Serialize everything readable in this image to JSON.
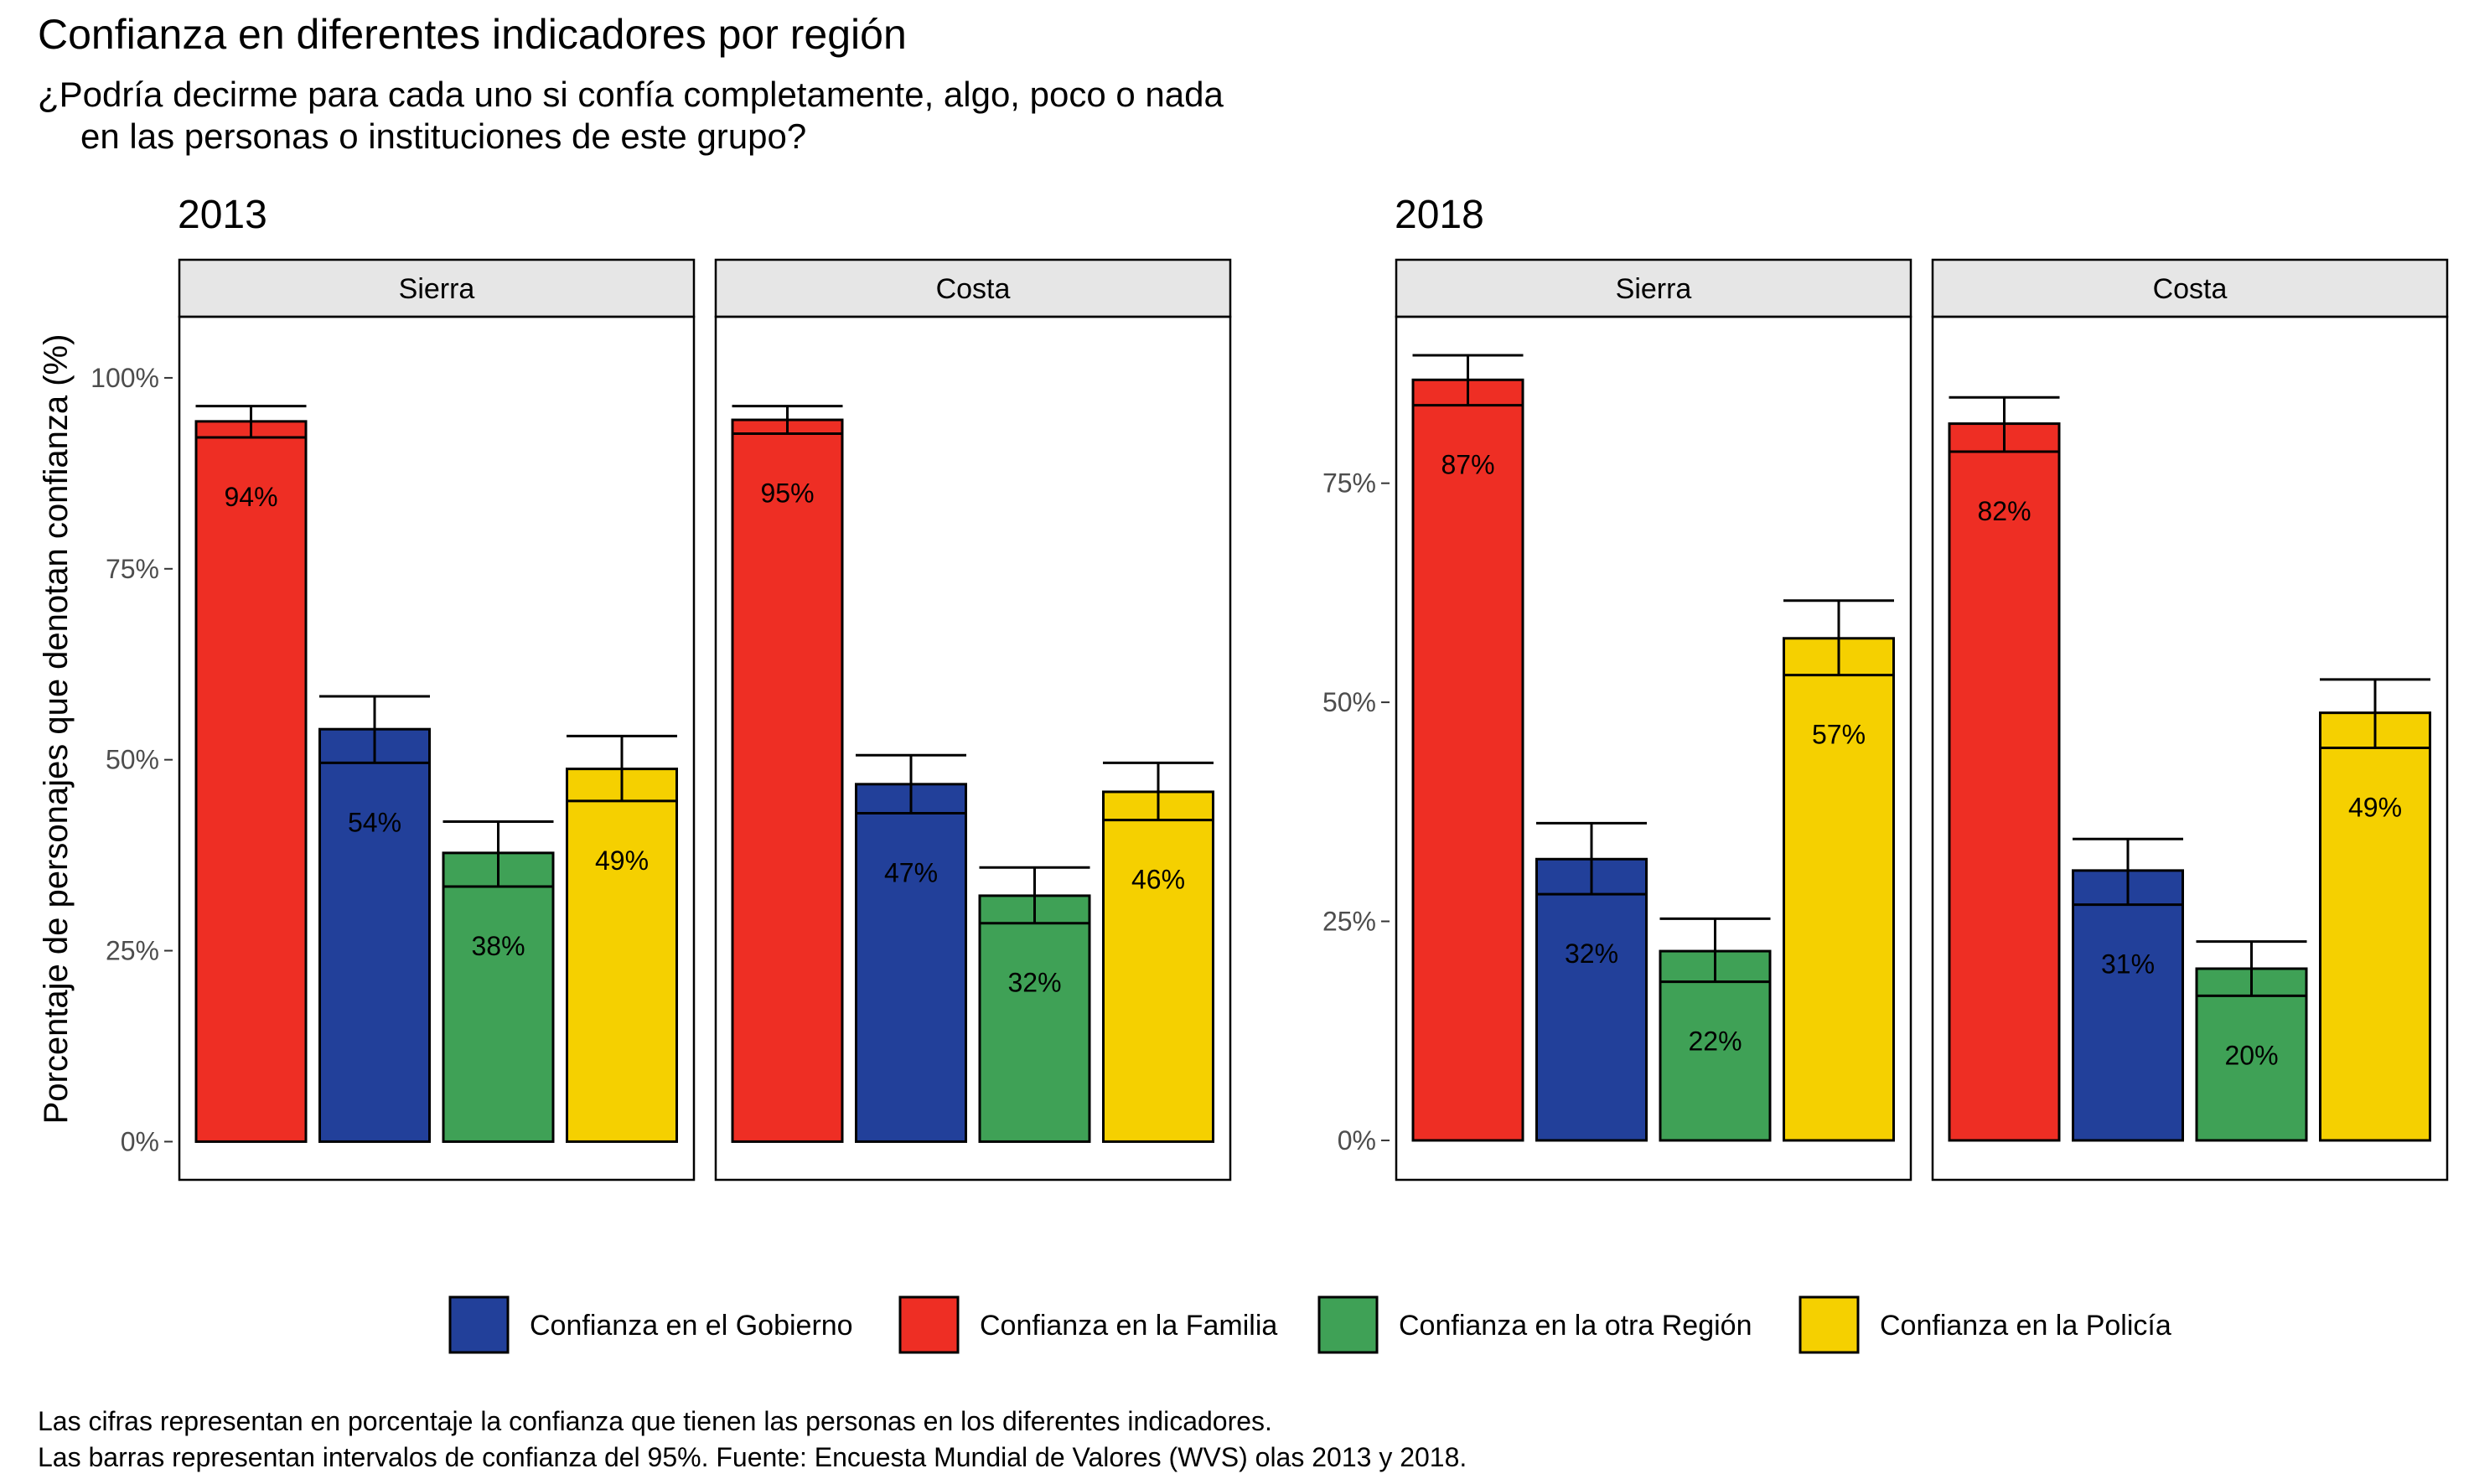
{
  "title": "Confianza en diferentes indicadores por región",
  "subtitle_lines": [
    "¿Podría decirme para cada uno si confía completamente, algo, poco o nada",
    "en las personas o instituciones de este grupo?"
  ],
  "ylabel": "Porcentaje de personajes que denotan confianza (%)",
  "legend": [
    {
      "label": "Confianza en el Gobierno",
      "color": "#22409A"
    },
    {
      "label": "Confianza en la Familia",
      "color": "#EE2E24"
    },
    {
      "label": "Confianza en la otra Región",
      "color": "#3FA156"
    },
    {
      "label": "Confianza en la Policía",
      "color": "#F5D000"
    }
  ],
  "caption_lines": [
    "Las cifras representan en porcentaje la confianza que tienen las personas en los diferentes indicadores.",
    "Las barras representan intervalos de confianza del 95%. Fuente: Encuesta Mundial de Valores (WVS) olas 2013 y 2018."
  ],
  "chart_data": [
    {
      "type": "bar",
      "title": "2013",
      "ylabel": "Porcentaje de personajes que denotan confianza (%)",
      "ylim": [
        -5,
        108
      ],
      "yticks": [
        0,
        25,
        50,
        75,
        100
      ],
      "ytick_labels": [
        "0%",
        "25%",
        "50%",
        "75%",
        "100%"
      ],
      "categories": [
        "Confianza en la Familia",
        "Confianza en el Gobierno",
        "Confianza en la otra Región",
        "Confianza en la Policía"
      ],
      "bar_colors": [
        "#EE2E24",
        "#22409A",
        "#3FA156",
        "#F5D000"
      ],
      "facets": [
        {
          "strip": "Sierra",
          "values": [
            94.3,
            54,
            37.8,
            48.8
          ],
          "labels": [
            "94%",
            "54%",
            "38%",
            "49%"
          ],
          "ci_low": [
            92.2,
            49.6,
            33.4,
            44.6
          ],
          "ci_high": [
            96.3,
            58.3,
            41.9,
            53.1
          ]
        },
        {
          "strip": "Costa",
          "values": [
            94.5,
            46.8,
            32.2,
            45.8
          ],
          "labels": [
            "95%",
            "47%",
            "32%",
            "46%"
          ],
          "ci_low": [
            92.7,
            43,
            28.6,
            42.1
          ],
          "ci_high": [
            96.3,
            50.6,
            35.9,
            49.6
          ]
        }
      ]
    },
    {
      "type": "bar",
      "title": "2018",
      "ylim": [
        -4.5,
        94
      ],
      "yticks": [
        0,
        25,
        50,
        75
      ],
      "ytick_labels": [
        "0%",
        "25%",
        "50%",
        "75%"
      ],
      "categories": [
        "Confianza en la Familia",
        "Confianza en el Gobierno",
        "Confianza en la otra Región",
        "Confianza en la Policía"
      ],
      "bar_colors": [
        "#EE2E24",
        "#22409A",
        "#3FA156",
        "#F5D000"
      ],
      "facets": [
        {
          "strip": "Sierra",
          "values": [
            86.8,
            32.1,
            21.6,
            57.3
          ],
          "labels": [
            "87%",
            "32%",
            "22%",
            "57%"
          ],
          "ci_low": [
            83.9,
            28.1,
            18.1,
            53.1
          ],
          "ci_high": [
            89.6,
            36.2,
            25.3,
            61.6
          ]
        },
        {
          "strip": "Costa",
          "values": [
            81.8,
            30.8,
            19.6,
            48.8
          ],
          "labels": [
            "82%",
            "31%",
            "20%",
            "49%"
          ],
          "ci_low": [
            78.6,
            26.9,
            16.5,
            44.8
          ],
          "ci_high": [
            84.8,
            34.4,
            22.7,
            52.6
          ]
        }
      ]
    }
  ]
}
